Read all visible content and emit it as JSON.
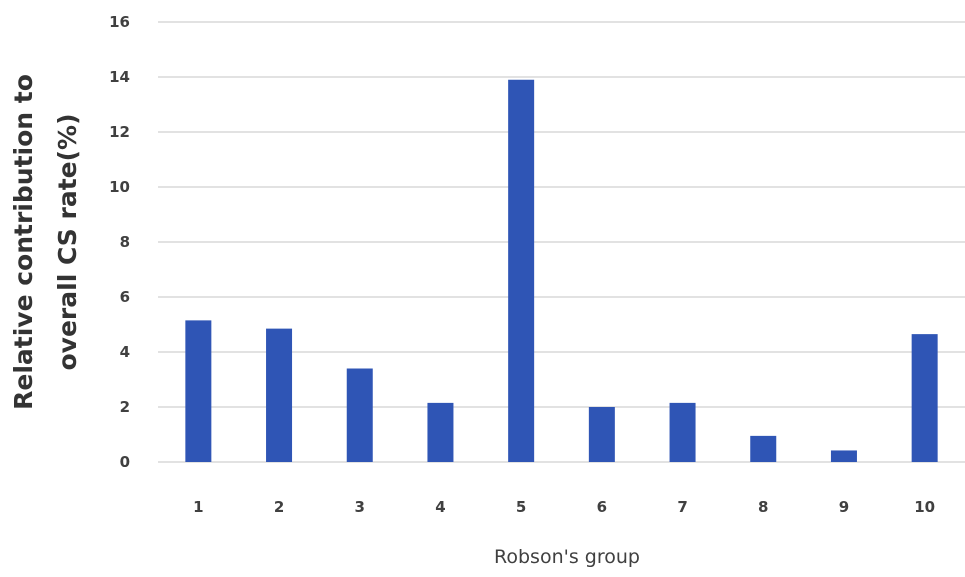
{
  "chart_data": {
    "type": "bar",
    "title": "",
    "categories": [
      "1",
      "2",
      "3",
      "4",
      "5",
      "6",
      "7",
      "8",
      "9",
      "10"
    ],
    "values": [
      5.15,
      4.85,
      3.4,
      2.15,
      13.9,
      2.0,
      2.15,
      0.95,
      0.42,
      4.65
    ],
    "xlabel": "Robson's group",
    "ylabel_lines": [
      "Relative contribution to",
      "overall CS rate(%)"
    ],
    "ylim": [
      0,
      16
    ],
    "yticks": [
      0,
      2,
      4,
      6,
      8,
      10,
      12,
      14,
      16
    ],
    "grid": true,
    "legend": "none",
    "bar_color": "#2f55b5",
    "grid_color": "#d9d9d9"
  }
}
